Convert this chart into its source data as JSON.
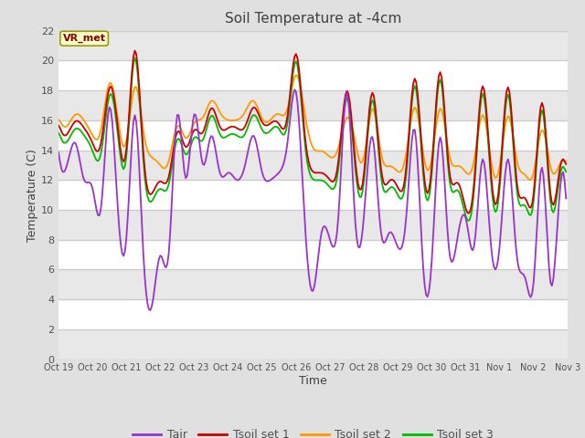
{
  "title": "Soil Temperature at -4cm",
  "xlabel": "Time",
  "ylabel": "Temperature (C)",
  "ylim": [
    0,
    22
  ],
  "tick_labels": [
    "Oct 19",
    "Oct 20",
    "Oct 21",
    "Oct 22",
    "Oct 23",
    "Oct 24",
    "Oct 25",
    "Oct 26",
    "Oct 27",
    "Oct 28",
    "Oct 29",
    "Oct 30",
    "Oct 31",
    "Nov 1",
    "Nov 2",
    "Nov 3"
  ],
  "legend_labels": [
    "Tair",
    "Tsoil set 1",
    "Tsoil set 2",
    "Tsoil set 3"
  ],
  "legend_colors": [
    "#9933cc",
    "#cc0000",
    "#ff9900",
    "#00bb00"
  ],
  "line_colors": [
    "#9933cc",
    "#cc0000",
    "#ff9900",
    "#00bb00"
  ],
  "annotation_text": "VR_met",
  "annotation_color": "#880000",
  "annotation_bg": "#ffffcc",
  "fig_bg_color": "#e0e0e0",
  "plot_bg_color": "#ffffff",
  "grid_color": "#cccccc",
  "title_color": "#404040",
  "axis_label_color": "#404040",
  "tick_label_color": "#505050"
}
